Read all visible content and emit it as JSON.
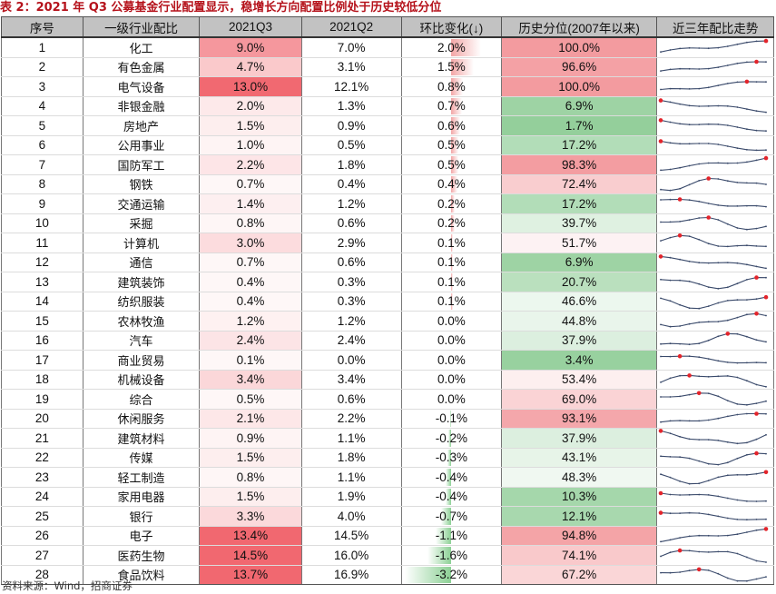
{
  "title": "表 2：2021 年 Q3 公募基金行业配置显示，稳增长方向配置比例处于历史较低分位",
  "footer": "资料来源：Wind，招商证券",
  "colors": {
    "header_bg": "#c2c2c2",
    "red": "#f08080",
    "green": "#86c98e",
    "spark_line": "#3a4a6b",
    "spark_marker": "#e3242b",
    "title": "#b5121b"
  },
  "table": {
    "headers": [
      "序号",
      "一级行业配比",
      "2021Q3",
      "2021Q2",
      "环比变化(↓)",
      "历史分位(2007年以来)",
      "近三年配比走势"
    ],
    "rows": [
      {
        "no": "1",
        "name": "化工",
        "q3": "9.0%",
        "q2": "7.0%",
        "chg": "2.0%",
        "pct": "100.0%"
      },
      {
        "no": "2",
        "name": "有色金属",
        "q3": "4.7%",
        "q2": "3.1%",
        "chg": "1.5%",
        "pct": "96.6%"
      },
      {
        "no": "3",
        "name": "电气设备",
        "q3": "13.0%",
        "q2": "12.1%",
        "chg": "0.8%",
        "pct": "100.0%"
      },
      {
        "no": "4",
        "name": "非银金融",
        "q3": "2.0%",
        "q2": "1.3%",
        "chg": "0.7%",
        "pct": "6.9%"
      },
      {
        "no": "5",
        "name": "房地产",
        "q3": "1.5%",
        "q2": "0.9%",
        "chg": "0.6%",
        "pct": "1.7%"
      },
      {
        "no": "6",
        "name": "公用事业",
        "q3": "1.0%",
        "q2": "0.5%",
        "chg": "0.5%",
        "pct": "17.2%"
      },
      {
        "no": "7",
        "name": "国防军工",
        "q3": "2.2%",
        "q2": "1.8%",
        "chg": "0.5%",
        "pct": "98.3%"
      },
      {
        "no": "8",
        "name": "钢铁",
        "q3": "0.7%",
        "q2": "0.4%",
        "chg": "0.4%",
        "pct": "72.4%"
      },
      {
        "no": "9",
        "name": "交通运输",
        "q3": "1.4%",
        "q2": "1.2%",
        "chg": "0.2%",
        "pct": "17.2%"
      },
      {
        "no": "10",
        "name": "采掘",
        "q3": "0.8%",
        "q2": "0.6%",
        "chg": "0.2%",
        "pct": "39.7%"
      },
      {
        "no": "11",
        "name": "计算机",
        "q3": "3.0%",
        "q2": "2.9%",
        "chg": "0.1%",
        "pct": "51.7%"
      },
      {
        "no": "12",
        "name": "通信",
        "q3": "0.7%",
        "q2": "0.6%",
        "chg": "0.1%",
        "pct": "6.9%"
      },
      {
        "no": "13",
        "name": "建筑装饰",
        "q3": "0.4%",
        "q2": "0.3%",
        "chg": "0.1%",
        "pct": "20.7%"
      },
      {
        "no": "14",
        "name": "纺织服装",
        "q3": "0.4%",
        "q2": "0.3%",
        "chg": "0.1%",
        "pct": "46.6%"
      },
      {
        "no": "15",
        "name": "农林牧渔",
        "q3": "1.2%",
        "q2": "1.2%",
        "chg": "0.0%",
        "pct": "44.8%"
      },
      {
        "no": "16",
        "name": "汽车",
        "q3": "2.4%",
        "q2": "2.4%",
        "chg": "0.0%",
        "pct": "37.9%"
      },
      {
        "no": "17",
        "name": "商业贸易",
        "q3": "0.1%",
        "q2": "0.0%",
        "chg": "0.0%",
        "pct": "3.4%"
      },
      {
        "no": "18",
        "name": "机械设备",
        "q3": "3.4%",
        "q2": "3.4%",
        "chg": "0.0%",
        "pct": "53.4%"
      },
      {
        "no": "19",
        "name": "综合",
        "q3": "0.5%",
        "q2": "0.6%",
        "chg": "0.0%",
        "pct": "69.0%"
      },
      {
        "no": "20",
        "name": "休闲服务",
        "q3": "2.1%",
        "q2": "2.2%",
        "chg": "-0.1%",
        "pct": "93.1%"
      },
      {
        "no": "21",
        "name": "建筑材料",
        "q3": "0.9%",
        "q2": "1.1%",
        "chg": "-0.2%",
        "pct": "37.9%"
      },
      {
        "no": "22",
        "name": "传媒",
        "q3": "1.5%",
        "q2": "1.8%",
        "chg": "-0.3%",
        "pct": "43.1%"
      },
      {
        "no": "23",
        "name": "轻工制造",
        "q3": "0.8%",
        "q2": "1.1%",
        "chg": "-0.4%",
        "pct": "48.3%"
      },
      {
        "no": "24",
        "name": "家用电器",
        "q3": "1.5%",
        "q2": "1.9%",
        "chg": "-0.4%",
        "pct": "10.3%"
      },
      {
        "no": "25",
        "name": "银行",
        "q3": "3.3%",
        "q2": "4.0%",
        "chg": "-0.7%",
        "pct": "12.1%"
      },
      {
        "no": "26",
        "name": "电子",
        "q3": "13.4%",
        "q2": "14.5%",
        "chg": "-1.1%",
        "pct": "94.8%"
      },
      {
        "no": "27",
        "name": "医药生物",
        "q3": "14.5%",
        "q2": "16.0%",
        "chg": "-1.6%",
        "pct": "74.1%"
      },
      {
        "no": "28",
        "name": "食品饮料",
        "q3": "13.7%",
        "q2": "16.9%",
        "chg": "-3.2%",
        "pct": "67.2%"
      }
    ]
  }
}
